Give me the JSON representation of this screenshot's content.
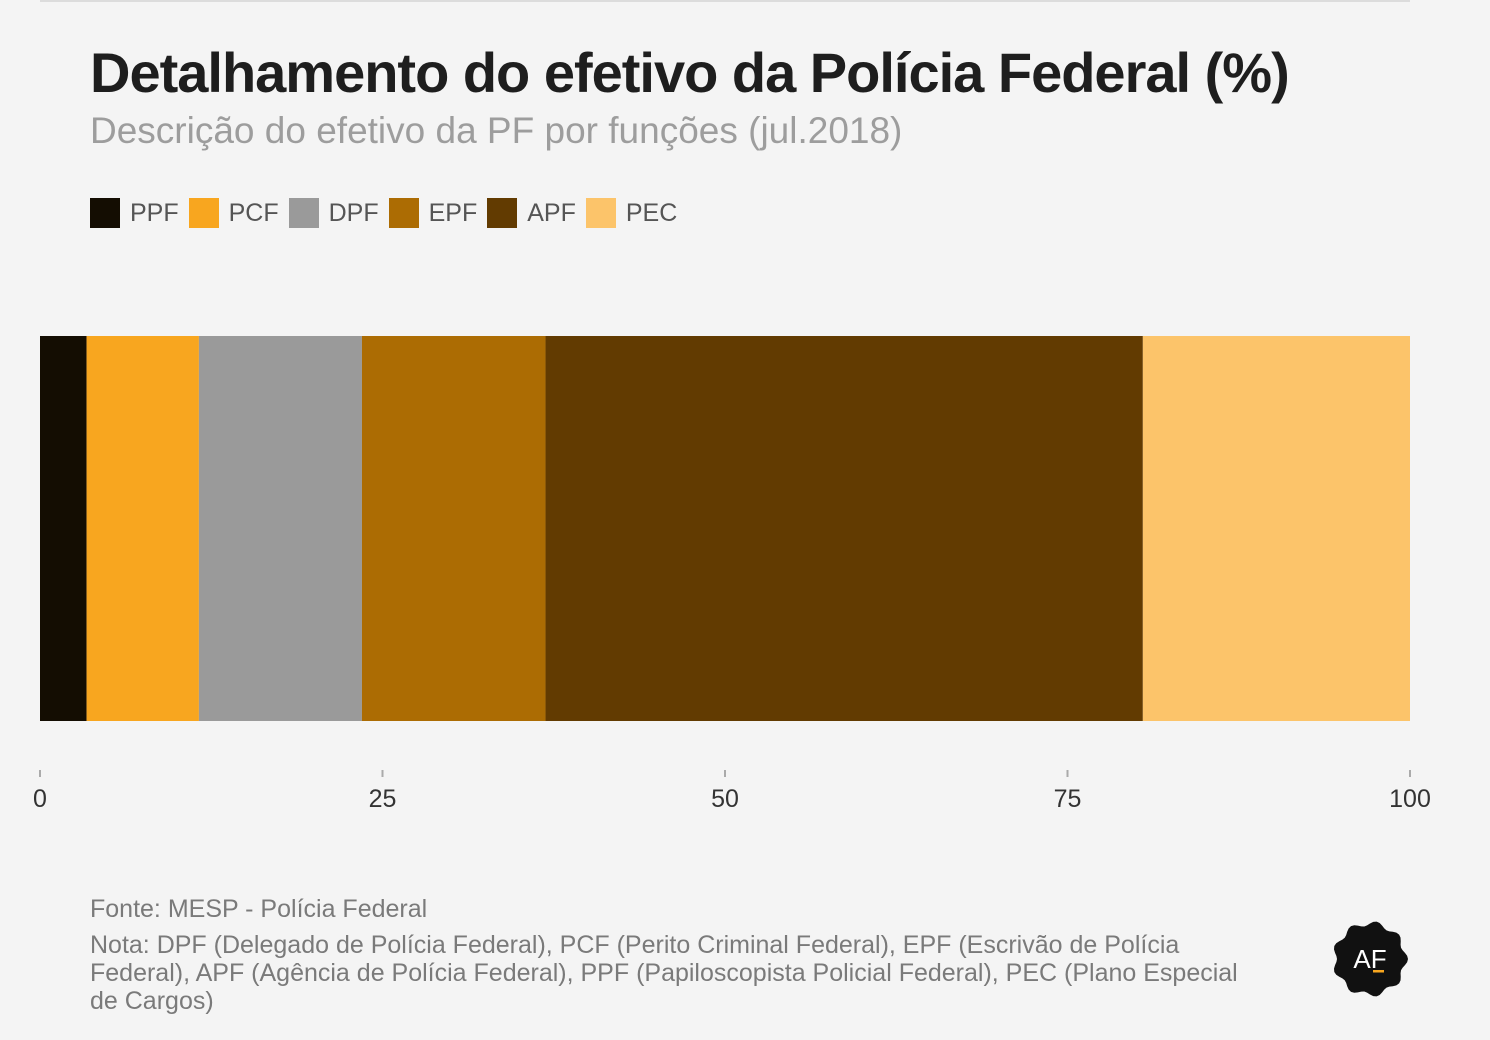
{
  "header": {
    "title": "Detalhamento do efetivo da Polícia Federal (%)",
    "subtitle": "Descrição do efetivo da PF por funções (jul.2018)"
  },
  "footer": {
    "source": "Fonte: MESP - Polícia Federal",
    "note": "Nota: DPF (Delegado de Polícia Federal), PCF (Perito Criminal Federal), EPF (Escrivão de Polícia Federal), APF (Agência de Polícia Federal), PPF (Papiloscopista Policial Federal), PEC (Plano Especial de Cargos)"
  },
  "logo": {
    "text": "AF",
    "icon": "af-logo-badge"
  },
  "chart_data": {
    "type": "bar",
    "orientation": "horizontal",
    "stacked": true,
    "title": "Detalhamento do efetivo da Polícia Federal (%)",
    "subtitle": "Descrição do efetivo da PF por funções (jul.2018)",
    "categories": [
      ""
    ],
    "series": [
      {
        "name": "PPF",
        "values": [
          3.4
        ],
        "color": "#140d02"
      },
      {
        "name": "PCF",
        "values": [
          8.2
        ],
        "color": "#f8a61f"
      },
      {
        "name": "DPF",
        "values": [
          11.9
        ],
        "color": "#9a9a9a"
      },
      {
        "name": "EPF",
        "values": [
          13.4
        ],
        "color": "#ac6c03"
      },
      {
        "name": "APF",
        "values": [
          43.6
        ],
        "color": "#623b01"
      },
      {
        "name": "PEC",
        "values": [
          19.5
        ],
        "color": "#fcc46a"
      }
    ],
    "xlim": [
      0,
      100
    ],
    "xticks": [
      "0",
      "25",
      "50",
      "75",
      "100"
    ],
    "xtick_values": [
      0,
      25,
      50,
      75,
      100
    ],
    "xlabel": "",
    "ylabel": "",
    "grid": false,
    "legend": "top-left"
  }
}
